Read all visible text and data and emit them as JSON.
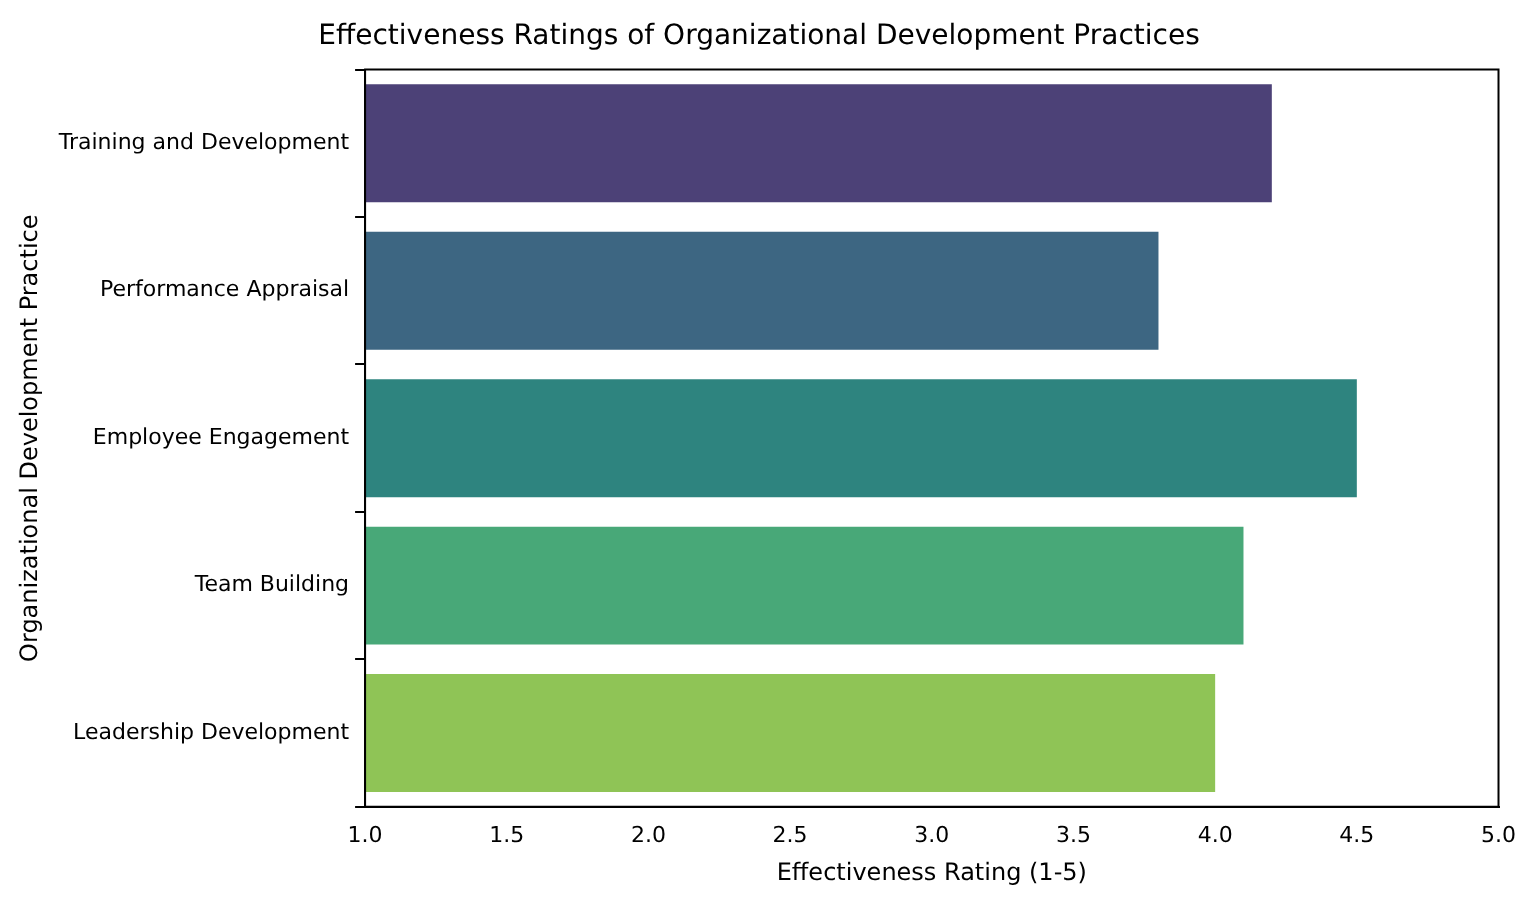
{
  "chart_data": {
    "type": "bar",
    "orientation": "horizontal",
    "title": "Effectiveness Ratings of Organizational Development Practices",
    "xlabel": "Effectiveness Rating (1-5)",
    "ylabel": "Organizational Development Practice",
    "categories": [
      "Training and Development",
      "Performance Appraisal",
      "Employee Engagement",
      "Team Building",
      "Leadership Development"
    ],
    "values": [
      4.2,
      3.8,
      4.5,
      4.1,
      4.0
    ],
    "colors": [
      "#4c4177",
      "#3d6682",
      "#2e847f",
      "#48a878",
      "#8fc456"
    ],
    "xlim": [
      1.0,
      5.0
    ],
    "xticks": [
      {
        "value": 1.0,
        "label": "1.0"
      },
      {
        "value": 1.5,
        "label": "1.5"
      },
      {
        "value": 2.0,
        "label": "2.0"
      },
      {
        "value": 2.5,
        "label": "2.5"
      },
      {
        "value": 3.0,
        "label": "3.0"
      },
      {
        "value": 3.5,
        "label": "3.5"
      },
      {
        "value": 4.0,
        "label": "4.0"
      },
      {
        "value": 4.5,
        "label": "4.5"
      },
      {
        "value": 5.0,
        "label": "5.0"
      }
    ],
    "grid": false,
    "legend": false
  }
}
